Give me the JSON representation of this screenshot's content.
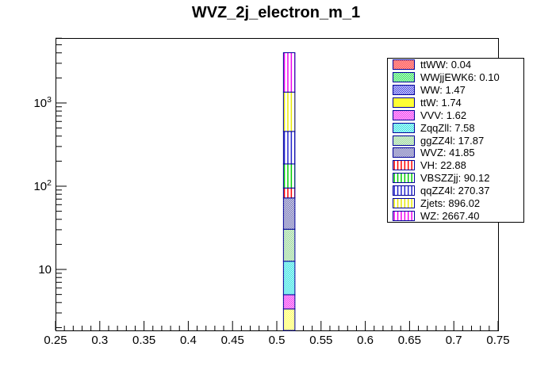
{
  "chart_data": {
    "type": "bar",
    "title": "WVZ_2j_electron_m_1",
    "subtitle": "",
    "legend_position": "top-right",
    "grid": false,
    "x_axis": {
      "lim": [
        0.25,
        0.75
      ],
      "minor_step": 0.01,
      "ticks": [
        {
          "v": 0.25,
          "label": "0.25"
        },
        {
          "v": 0.3,
          "label": "0.3"
        },
        {
          "v": 0.35,
          "label": "0.35"
        },
        {
          "v": 0.4,
          "label": "0.4"
        },
        {
          "v": 0.45,
          "label": "0.45"
        },
        {
          "v": 0.5,
          "label": "0.5"
        },
        {
          "v": 0.55,
          "label": "0.55"
        },
        {
          "v": 0.6,
          "label": "0.6"
        },
        {
          "v": 0.65,
          "label": "0.65"
        },
        {
          "v": 0.7,
          "label": "0.7"
        },
        {
          "v": 0.75,
          "label": "0.75"
        }
      ]
    },
    "y_axis": {
      "scale": "log",
      "lim": [
        1.85,
        6030
      ],
      "ticks": [
        {
          "v": 10,
          "base": "10",
          "exp": ""
        },
        {
          "v": 100,
          "base": "10",
          "exp": "2"
        },
        {
          "v": 1000,
          "base": "10",
          "exp": "3"
        }
      ]
    },
    "bin": {
      "x_low": 0.5075,
      "x_high": 0.5205
    },
    "stacking": "series listed bottom-to-top; legend shown in same order top-to-bottom",
    "outline_color": "#000099",
    "series": [
      {
        "name": "ttWW",
        "value": 0.04,
        "legend_label": "ttWW: 0.04",
        "color": "#ff0000",
        "fill": "checker"
      },
      {
        "name": "WWjjEWK6",
        "value": 0.1,
        "legend_label": "WWjjEWK6: 0.10",
        "color": "#00dd33",
        "fill": "checker"
      },
      {
        "name": "WW",
        "value": 1.47,
        "legend_label": "WW: 1.47",
        "color": "#2222dd",
        "fill": "checker"
      },
      {
        "name": "ttW",
        "value": 1.74,
        "legend_label": "ttW: 1.74",
        "color": "#ffff33",
        "fill": "checker",
        "legend_fill": "solid"
      },
      {
        "name": "VVV",
        "value": 1.62,
        "legend_label": "VVV: 1.62",
        "color": "#ee00ee",
        "fill": "checker"
      },
      {
        "name": "ZqqZll",
        "value": 7.58,
        "legend_label": "ZqqZll: 7.58",
        "color": "#00dddd",
        "fill": "checker"
      },
      {
        "name": "ggZZ4l",
        "value": 17.87,
        "legend_label": "ggZZ4l: 17.87",
        "color": "#7fcc7f",
        "fill": "checker"
      },
      {
        "name": "WVZ",
        "value": 41.85,
        "legend_label": "WVZ: 41.85",
        "color": "#5050a5",
        "fill": "checker"
      },
      {
        "name": "VH",
        "value": 22.88,
        "legend_label": "VH: 22.88",
        "color": "#ff0000",
        "fill": "vlines"
      },
      {
        "name": "VBSZZjj",
        "value": 90.12,
        "legend_label": "VBSZZjj: 90.12",
        "color": "#00cc00",
        "fill": "vlines"
      },
      {
        "name": "qqZZ4l",
        "value": 270.37,
        "legend_label": "qqZZ4l: 270.37",
        "color": "#2222cc",
        "fill": "vlines"
      },
      {
        "name": "Zjets",
        "value": 896.02,
        "legend_label": "Zjets: 896.02",
        "color": "#e8e800",
        "fill": "vlines"
      },
      {
        "name": "WZ",
        "value": 2667.4,
        "legend_label": "WZ: 2667.40",
        "color": "#ee00ee",
        "fill": "vlines"
      }
    ]
  }
}
